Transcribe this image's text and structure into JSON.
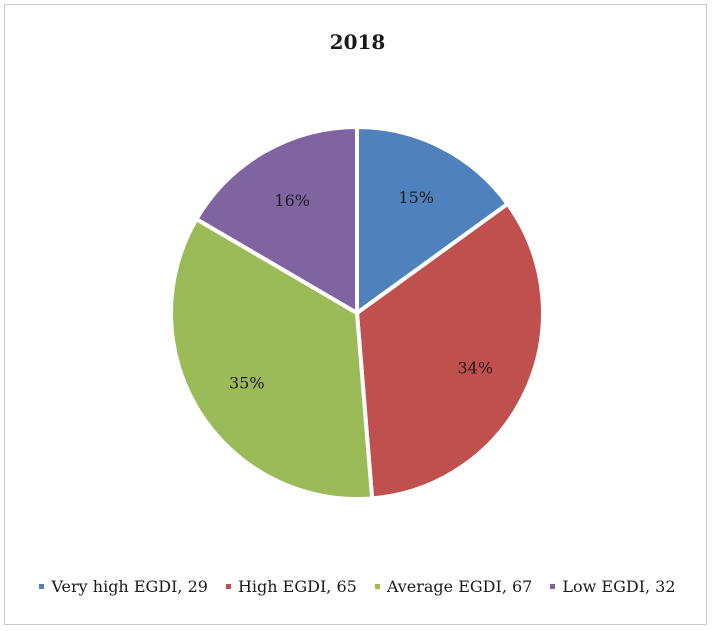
{
  "chart_data": {
    "type": "pie",
    "title": "2018",
    "legend_position": "bottom",
    "slices": [
      {
        "name": "Very high EGDI",
        "value": 29,
        "percent_label": "15%",
        "color": "#4f81bd",
        "legend_label": "Very high EGDI, 29"
      },
      {
        "name": "High EGDI",
        "value": 65,
        "percent_label": "34%",
        "color": "#c0504d",
        "legend_label": "High EGDI, 65"
      },
      {
        "name": "Average EGDI",
        "value": 67,
        "percent_label": "35%",
        "color": "#9bbb59",
        "legend_label": "Average EGDI, 67"
      },
      {
        "name": "Low EGDI",
        "value": 32,
        "percent_label": "16%",
        "color": "#8064a2",
        "legend_label": "Low EGDI, 32"
      }
    ]
  }
}
